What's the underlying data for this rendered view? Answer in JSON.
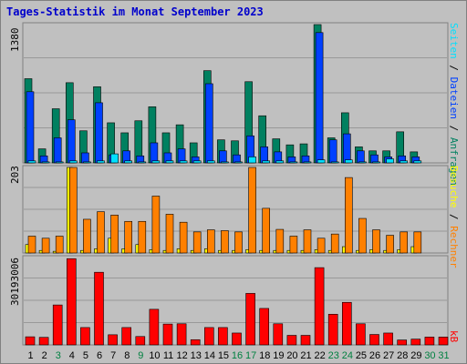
{
  "title": "Tages-Statistik im Monat September 2023",
  "scales": {
    "top": "1380",
    "middle": "203",
    "bottom": "30193006"
  },
  "legend": {
    "top": [
      "Anfragen",
      "Dateien",
      "Seiten"
    ],
    "middle": [
      "Besuche",
      "Rechner"
    ],
    "bottom": [
      "kB"
    ],
    "separator": " / "
  },
  "colors": {
    "anfragen": "#008060",
    "dateien": "#0040ff",
    "seiten": "#00e0ff",
    "besuche": "#ffff00",
    "rechner": "#ff8000",
    "kb": "#ff0000",
    "weekday_label": "#000000",
    "weekend_label": "#008040",
    "title": "#0000cc"
  },
  "chart_data": [
    {
      "type": "bar",
      "name": "hits",
      "categories": [
        "1",
        "2",
        "3",
        "4",
        "5",
        "6",
        "7",
        "8",
        "9",
        "10",
        "11",
        "12",
        "13",
        "14",
        "15",
        "16",
        "17",
        "18",
        "19",
        "20",
        "21",
        "22",
        "23",
        "24",
        "25",
        "26",
        "27",
        "28",
        "29",
        "30",
        "31"
      ],
      "series": [
        {
          "name": "Anfragen",
          "values": [
            840,
            140,
            540,
            800,
            320,
            760,
            400,
            300,
            420,
            560,
            300,
            380,
            200,
            920,
            230,
            220,
            810,
            470,
            240,
            180,
            190,
            1380,
            250,
            500,
            160,
            120,
            120,
            310,
            110,
            0,
            0
          ]
        },
        {
          "name": "Dateien",
          "values": [
            710,
            70,
            250,
            430,
            100,
            600,
            80,
            120,
            70,
            200,
            100,
            140,
            60,
            790,
            120,
            80,
            270,
            160,
            110,
            60,
            70,
            1300,
            230,
            290,
            120,
            80,
            60,
            70,
            60,
            0,
            0
          ]
        },
        {
          "name": "Seiten",
          "values": [
            20,
            10,
            10,
            20,
            10,
            20,
            90,
            20,
            10,
            20,
            20,
            20,
            20,
            20,
            10,
            10,
            60,
            20,
            20,
            10,
            10,
            30,
            10,
            30,
            10,
            10,
            40,
            20,
            20,
            0,
            0
          ]
        }
      ],
      "ylim": [
        0,
        1380
      ]
    },
    {
      "type": "bar",
      "name": "visits",
      "categories": [
        "1",
        "2",
        "3",
        "4",
        "5",
        "6",
        "7",
        "8",
        "9",
        "10",
        "11",
        "12",
        "13",
        "14",
        "15",
        "16",
        "17",
        "18",
        "19",
        "20",
        "21",
        "22",
        "23",
        "24",
        "25",
        "26",
        "27",
        "28",
        "29",
        "30",
        "31"
      ],
      "series": [
        {
          "name": "Besuche",
          "values": [
            20,
            6,
            4,
            203,
            6,
            10,
            35,
            10,
            20,
            8,
            6,
            10,
            6,
            10,
            6,
            6,
            8,
            6,
            6,
            6,
            6,
            8,
            6,
            15,
            6,
            8,
            6,
            8,
            15,
            0,
            0
          ]
        },
        {
          "name": "Rechner",
          "values": [
            40,
            35,
            40,
            203,
            80,
            98,
            90,
            75,
            75,
            135,
            92,
            73,
            50,
            55,
            53,
            50,
            203,
            106,
            56,
            40,
            55,
            35,
            45,
            179,
            82,
            55,
            42,
            50,
            50,
            0,
            0
          ]
        }
      ],
      "ylim": [
        0,
        203
      ]
    },
    {
      "type": "bar",
      "name": "traffic",
      "categories": [
        "1",
        "2",
        "3",
        "4",
        "5",
        "6",
        "7",
        "8",
        "9",
        "10",
        "11",
        "12",
        "13",
        "14",
        "15",
        "16",
        "17",
        "18",
        "19",
        "20",
        "21",
        "22",
        "23",
        "24",
        "25",
        "26",
        "27",
        "28",
        "29",
        "30",
        "31"
      ],
      "series": [
        {
          "name": "kB",
          "values": [
            2800000,
            2600000,
            13800000,
            29800000,
            6000000,
            25100000,
            3500000,
            6000000,
            2900000,
            12300000,
            7200000,
            7300000,
            1800000,
            6000000,
            6000000,
            4100000,
            17800000,
            12600000,
            7300000,
            3300000,
            3300000,
            26700000,
            10600000,
            14700000,
            7300000,
            3600000,
            4100000,
            1700000,
            2000000,
            2700000,
            2700000
          ]
        }
      ],
      "ylim": [
        0,
        30193006
      ]
    }
  ],
  "x_axis": {
    "days": [
      "1",
      "2",
      "3",
      "4",
      "5",
      "6",
      "7",
      "8",
      "9",
      "10",
      "11",
      "12",
      "13",
      "14",
      "15",
      "16",
      "17",
      "18",
      "19",
      "20",
      "21",
      "22",
      "23",
      "24",
      "25",
      "26",
      "27",
      "28",
      "29",
      "30",
      "31"
    ],
    "weekend": [
      false,
      false,
      true,
      false,
      false,
      false,
      false,
      false,
      true,
      false,
      false,
      false,
      false,
      false,
      false,
      true,
      true,
      false,
      false,
      false,
      false,
      false,
      true,
      true,
      false,
      false,
      false,
      false,
      false,
      true,
      true
    ]
  }
}
